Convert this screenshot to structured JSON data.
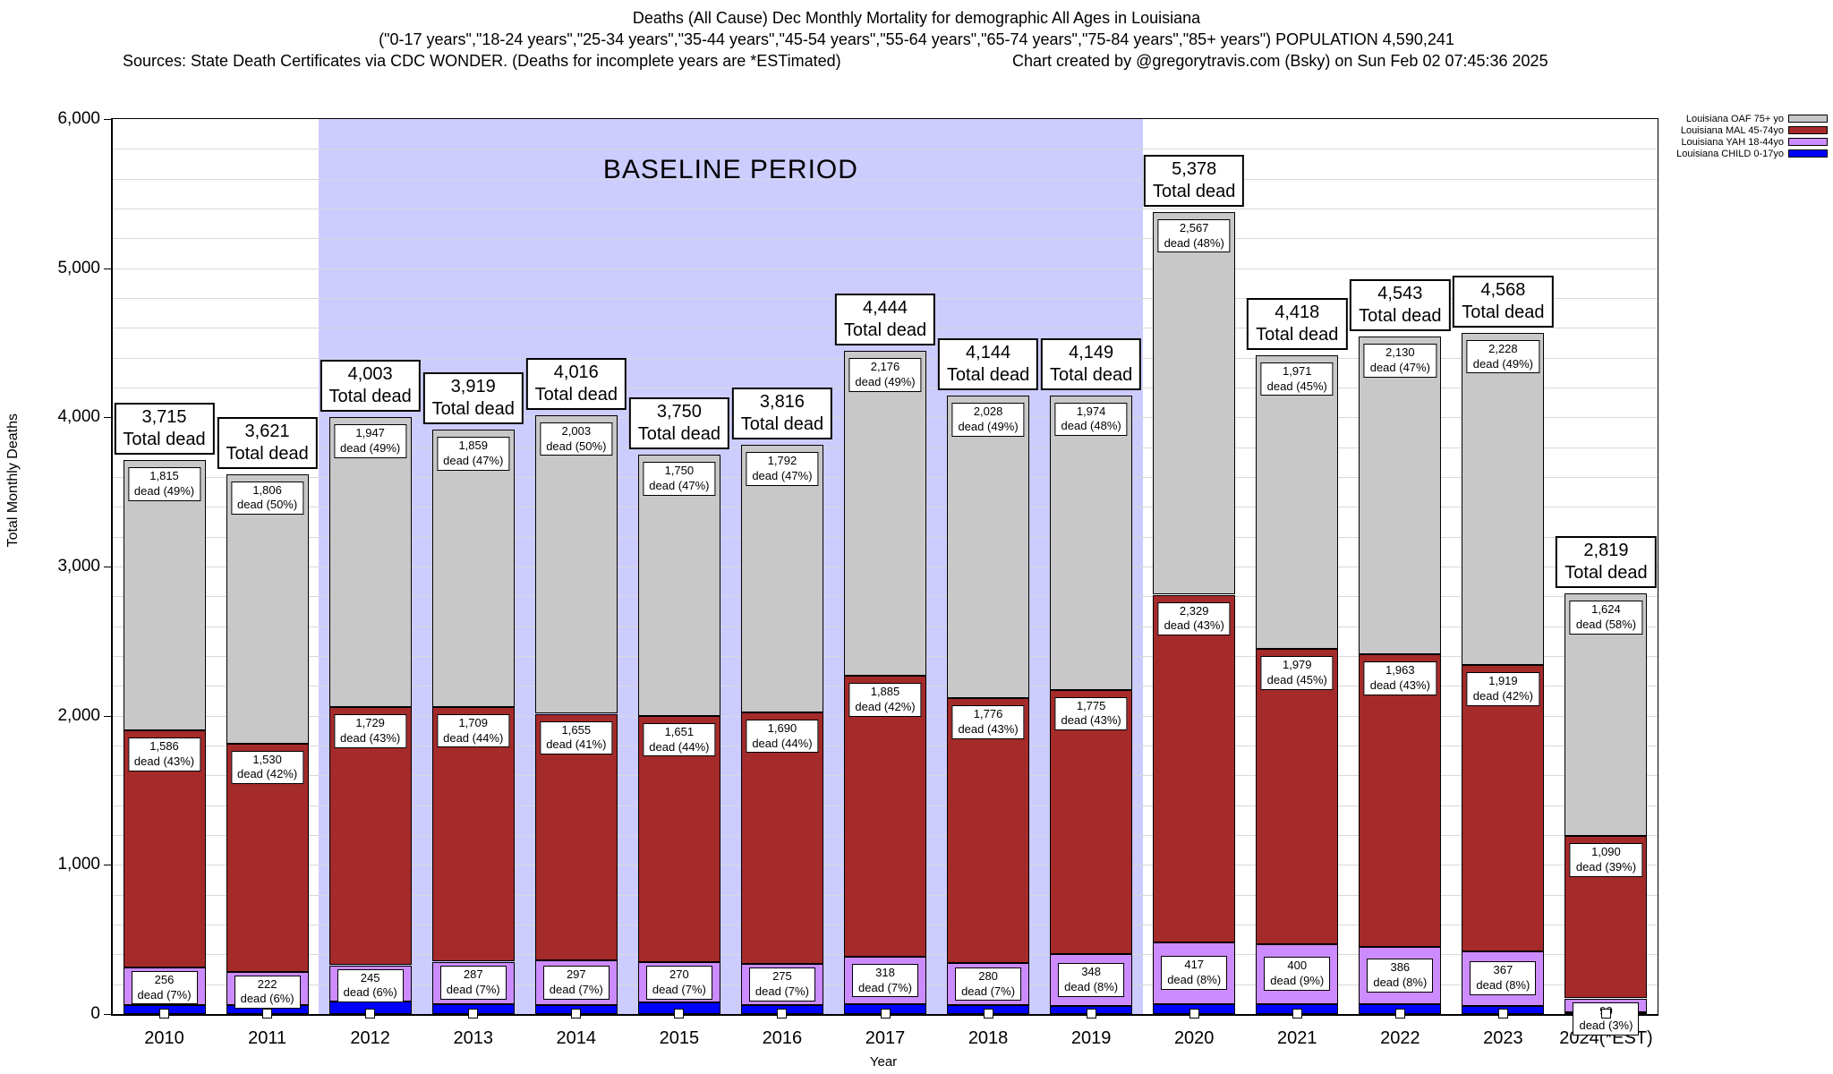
{
  "header": {
    "title_line1": "Deaths (All Cause) Dec Monthly Mortality for demographic All Ages in Louisiana",
    "title_line2": "(\"0-17 years\",\"18-24 years\",\"25-34 years\",\"35-44 years\",\"45-54 years\",\"55-64 years\",\"65-74 years\",\"75-84 years\",\"85+ years\") POPULATION 4,590,241",
    "title_line3_sources": "Sources: State Death Certificates via CDC WONDER. (Deaths for incomplete years are *ESTimated)",
    "title_line3_credit": "Chart created by @gregorytravis.com (Bsky) on Sun Feb 02 07:45:36 2025"
  },
  "chart_data": {
    "type": "bar",
    "stacked": true,
    "title": "Deaths (All Cause) Dec Monthly Mortality for demographic All Ages in Louisiana",
    "xlabel": "Year",
    "ylabel": "Total Monthly Deaths",
    "ylim": [
      0,
      6000
    ],
    "yticks": [
      0,
      1000,
      2000,
      3000,
      4000,
      5000,
      6000
    ],
    "ytick_labels": [
      "0",
      "1,000",
      "2,000",
      "3,000",
      "4,000",
      "5,000",
      "6,000"
    ],
    "grid_step": 200,
    "categories": [
      "2010",
      "2011",
      "2012",
      "2013",
      "2014",
      "2015",
      "2016",
      "2017",
      "2018",
      "2019",
      "2020",
      "2021",
      "2022",
      "2023",
      "2024(*EST)"
    ],
    "totals": [
      3715,
      3621,
      4003,
      3919,
      4016,
      3750,
      3816,
      4444,
      4144,
      4149,
      5378,
      4418,
      4543,
      4568,
      2819
    ],
    "baseline_period": {
      "label": "BASELINE PERIOD",
      "start_index": 2,
      "end_index": 9,
      "color": "#ccccff"
    },
    "labels": {
      "total_suffix": "Total dead",
      "segment_prefix": "dead"
    },
    "series": [
      {
        "name": "Louisiana CHILD 0-17yo",
        "color": "#0000ff",
        "labeled": false,
        "label_placement": "none",
        "values": [
          58,
          63,
          82,
          64,
          61,
          79,
          59,
          65,
          60,
          52,
          65,
          68,
          64,
          54,
          15
        ]
      },
      {
        "name": "Louisiana YAH 18-44yo",
        "color": "#cc8cff",
        "labeled": true,
        "label_placement": "center",
        "values": [
          256,
          222,
          245,
          287,
          297,
          270,
          275,
          318,
          280,
          348,
          417,
          400,
          386,
          367,
          90
        ],
        "pcts": [
          7,
          6,
          6,
          7,
          7,
          7,
          7,
          7,
          7,
          8,
          8,
          9,
          8,
          8,
          3
        ]
      },
      {
        "name": "Louisiana MAL 45-74yo",
        "color": "#a52a2a",
        "labeled": true,
        "label_placement": "top",
        "values": [
          1586,
          1530,
          1729,
          1709,
          1655,
          1651,
          1690,
          1885,
          1776,
          1775,
          2329,
          1979,
          1963,
          1919,
          1090
        ],
        "pcts": [
          43,
          42,
          43,
          44,
          41,
          44,
          44,
          42,
          43,
          43,
          43,
          45,
          43,
          42,
          39
        ]
      },
      {
        "name": "Louisiana OAF 75+ yo",
        "color": "#c8c8c8",
        "labeled": true,
        "label_placement": "top",
        "values": [
          1815,
          1806,
          1947,
          1859,
          2003,
          1750,
          1792,
          2176,
          2028,
          1974,
          2567,
          1971,
          2130,
          2228,
          1624
        ],
        "pcts": [
          49,
          50,
          49,
          47,
          50,
          47,
          47,
          49,
          49,
          48,
          48,
          45,
          47,
          49,
          58
        ]
      }
    ],
    "legend": [
      {
        "label": "Louisiana OAF 75+ yo",
        "color": "#c8c8c8"
      },
      {
        "label": "Louisiana MAL 45-74yo",
        "color": "#a52a2a"
      },
      {
        "label": "Louisiana YAH 18-44yo",
        "color": "#cc8cff"
      },
      {
        "label": "Louisiana CHILD 0-17yo",
        "color": "#0000ff"
      }
    ],
    "legend_position": "top-right",
    "grid": true
  }
}
